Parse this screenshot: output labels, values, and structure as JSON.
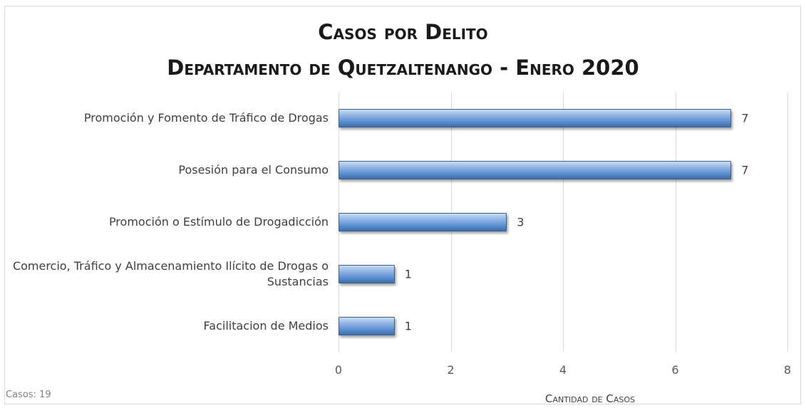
{
  "chart_data": {
    "type": "barh",
    "title": "Casos por Delito",
    "subtitle": "Departamento de Quetzaltenango - Enero 2020",
    "categories": [
      "Promoción y Fomento de Tráfico de Drogas",
      "Posesión para el Consumo",
      "Promoción o Estímulo de Drogadicción",
      "Comercio, Tráfico y Almacenamiento Ilícito de Drogas o Sustancias",
      "Facilitacion de Medios"
    ],
    "values": [
      7,
      7,
      3,
      1,
      1
    ],
    "color": "#5b8fd1",
    "xlim": [
      0,
      8
    ],
    "xticks": [
      0,
      2,
      4,
      6,
      8
    ],
    "grid": true,
    "xlabel": "Cantidad de Casos",
    "note": "Casos: 19"
  }
}
